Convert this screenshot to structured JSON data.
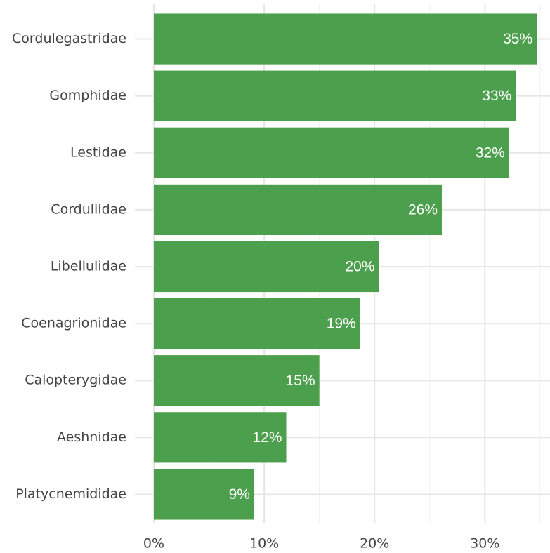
{
  "chart_data": {
    "type": "bar",
    "orientation": "horizontal",
    "categories": [
      "Cordulegastridae",
      "Gomphidae",
      "Lestidae",
      "Corduliidae",
      "Libellulidae",
      "Coenagrionidae",
      "Calopterygidae",
      "Aeshnidae",
      "Platycnemididae"
    ],
    "values": [
      34.7,
      32.8,
      32.2,
      26.1,
      20.4,
      18.7,
      15.0,
      12.0,
      9.1
    ],
    "value_labels": [
      "35%",
      "33%",
      "32%",
      "26%",
      "20%",
      "19%",
      "15%",
      "12%",
      "9%"
    ],
    "color": "#4c9f4c",
    "xlim": [
      0,
      35.9
    ],
    "xticks": [
      {
        "value": 0,
        "label": "0%"
      },
      {
        "value": 10,
        "label": "10%"
      },
      {
        "value": 20,
        "label": "20%"
      },
      {
        "value": 30,
        "label": "30%"
      }
    ],
    "grid": true
  }
}
